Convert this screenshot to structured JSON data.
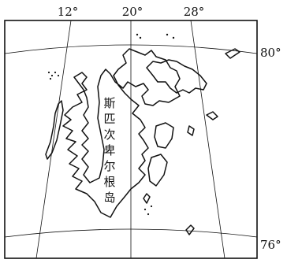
{
  "map": {
    "longitudes": [
      {
        "label": "12°"
      },
      {
        "label": "20°"
      },
      {
        "label": "28°"
      }
    ],
    "latitudes": [
      {
        "label": "80°"
      },
      {
        "label": "76°"
      }
    ],
    "place_name": [
      "斯",
      "匹",
      "次",
      "卑",
      "尔",
      "根",
      "岛"
    ]
  }
}
